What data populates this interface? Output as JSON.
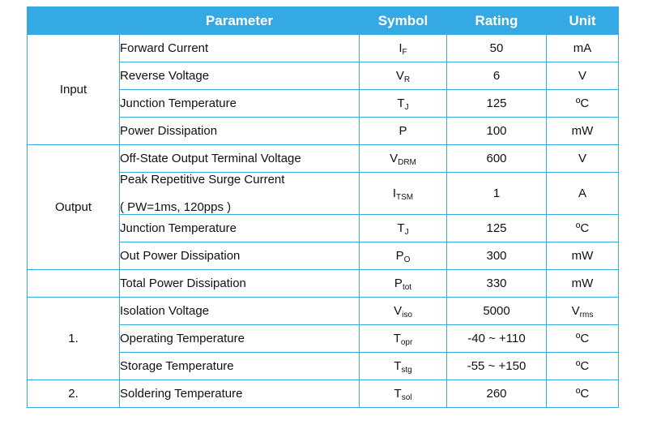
{
  "header": {
    "parameter": "Parameter",
    "symbol": "Symbol",
    "rating": "Rating",
    "unit": "Unit"
  },
  "rows": [
    {
      "group": "Input",
      "parameter": "Forward Current",
      "sym_main": "I",
      "sym_sub": "F",
      "rating": "50",
      "unit_main": "mA",
      "unit_sub": ""
    },
    {
      "group": "",
      "parameter": "Reverse Voltage",
      "sym_main": "V",
      "sym_sub": "R",
      "rating": "6",
      "unit_main": "V",
      "unit_sub": ""
    },
    {
      "group": "",
      "parameter": "Junction Temperature",
      "sym_main": "T",
      "sym_sub": "J",
      "rating": "125",
      "unit_main": "ºC",
      "unit_sub": ""
    },
    {
      "group": "",
      "parameter": "Power Dissipation",
      "sym_main": "P",
      "sym_sub": "",
      "rating": "100",
      "unit_main": "mW",
      "unit_sub": ""
    },
    {
      "group": "Output",
      "parameter": "Off-State Output Terminal Voltage",
      "sym_main": "V",
      "sym_sub": "DRM",
      "rating": "600",
      "unit_main": "V",
      "unit_sub": ""
    },
    {
      "group": "",
      "parameter": "Peak Repetitive Surge Current",
      "parameter_line2": "( PW=1ms, 120pps )",
      "sym_main": "I",
      "sym_sub": "TSM",
      "rating": "1",
      "unit_main": "A",
      "unit_sub": ""
    },
    {
      "group": "",
      "parameter": "Junction Temperature",
      "sym_main": "T",
      "sym_sub": "J",
      "rating": "125",
      "unit_main": "ºC",
      "unit_sub": ""
    },
    {
      "group": "",
      "parameter": "Out Power Dissipation",
      "sym_main": "P",
      "sym_sub": "O",
      "rating": "300",
      "unit_main": "mW",
      "unit_sub": ""
    },
    {
      "group": "",
      "parameter": "Total Power Dissipation",
      "sym_main": "P",
      "sym_sub": "tot",
      "rating": "330",
      "unit_main": "mW",
      "unit_sub": ""
    },
    {
      "group": "1.",
      "parameter": "Isolation Voltage",
      "sym_main": "V",
      "sym_sub": "iso",
      "rating": "5000",
      "unit_main": "V",
      "unit_sub": "rms"
    },
    {
      "group": "",
      "parameter": "Operating Temperature",
      "sym_main": "T",
      "sym_sub": "opr",
      "rating": "-40 ~ +110",
      "unit_main": "ºC",
      "unit_sub": ""
    },
    {
      "group": "",
      "parameter": "Storage Temperature",
      "sym_main": "T",
      "sym_sub": "stg",
      "rating": "-55 ~ +150",
      "unit_main": "ºC",
      "unit_sub": ""
    },
    {
      "group": "2.",
      "parameter": "Soldering Temperature",
      "sym_main": "T",
      "sym_sub": "sol",
      "rating": "260",
      "unit_main": "ºC",
      "unit_sub": ""
    }
  ],
  "colors": {
    "header_bg": "#35a9e4",
    "header_text": "#ffffff",
    "border": "#35a9e4"
  }
}
